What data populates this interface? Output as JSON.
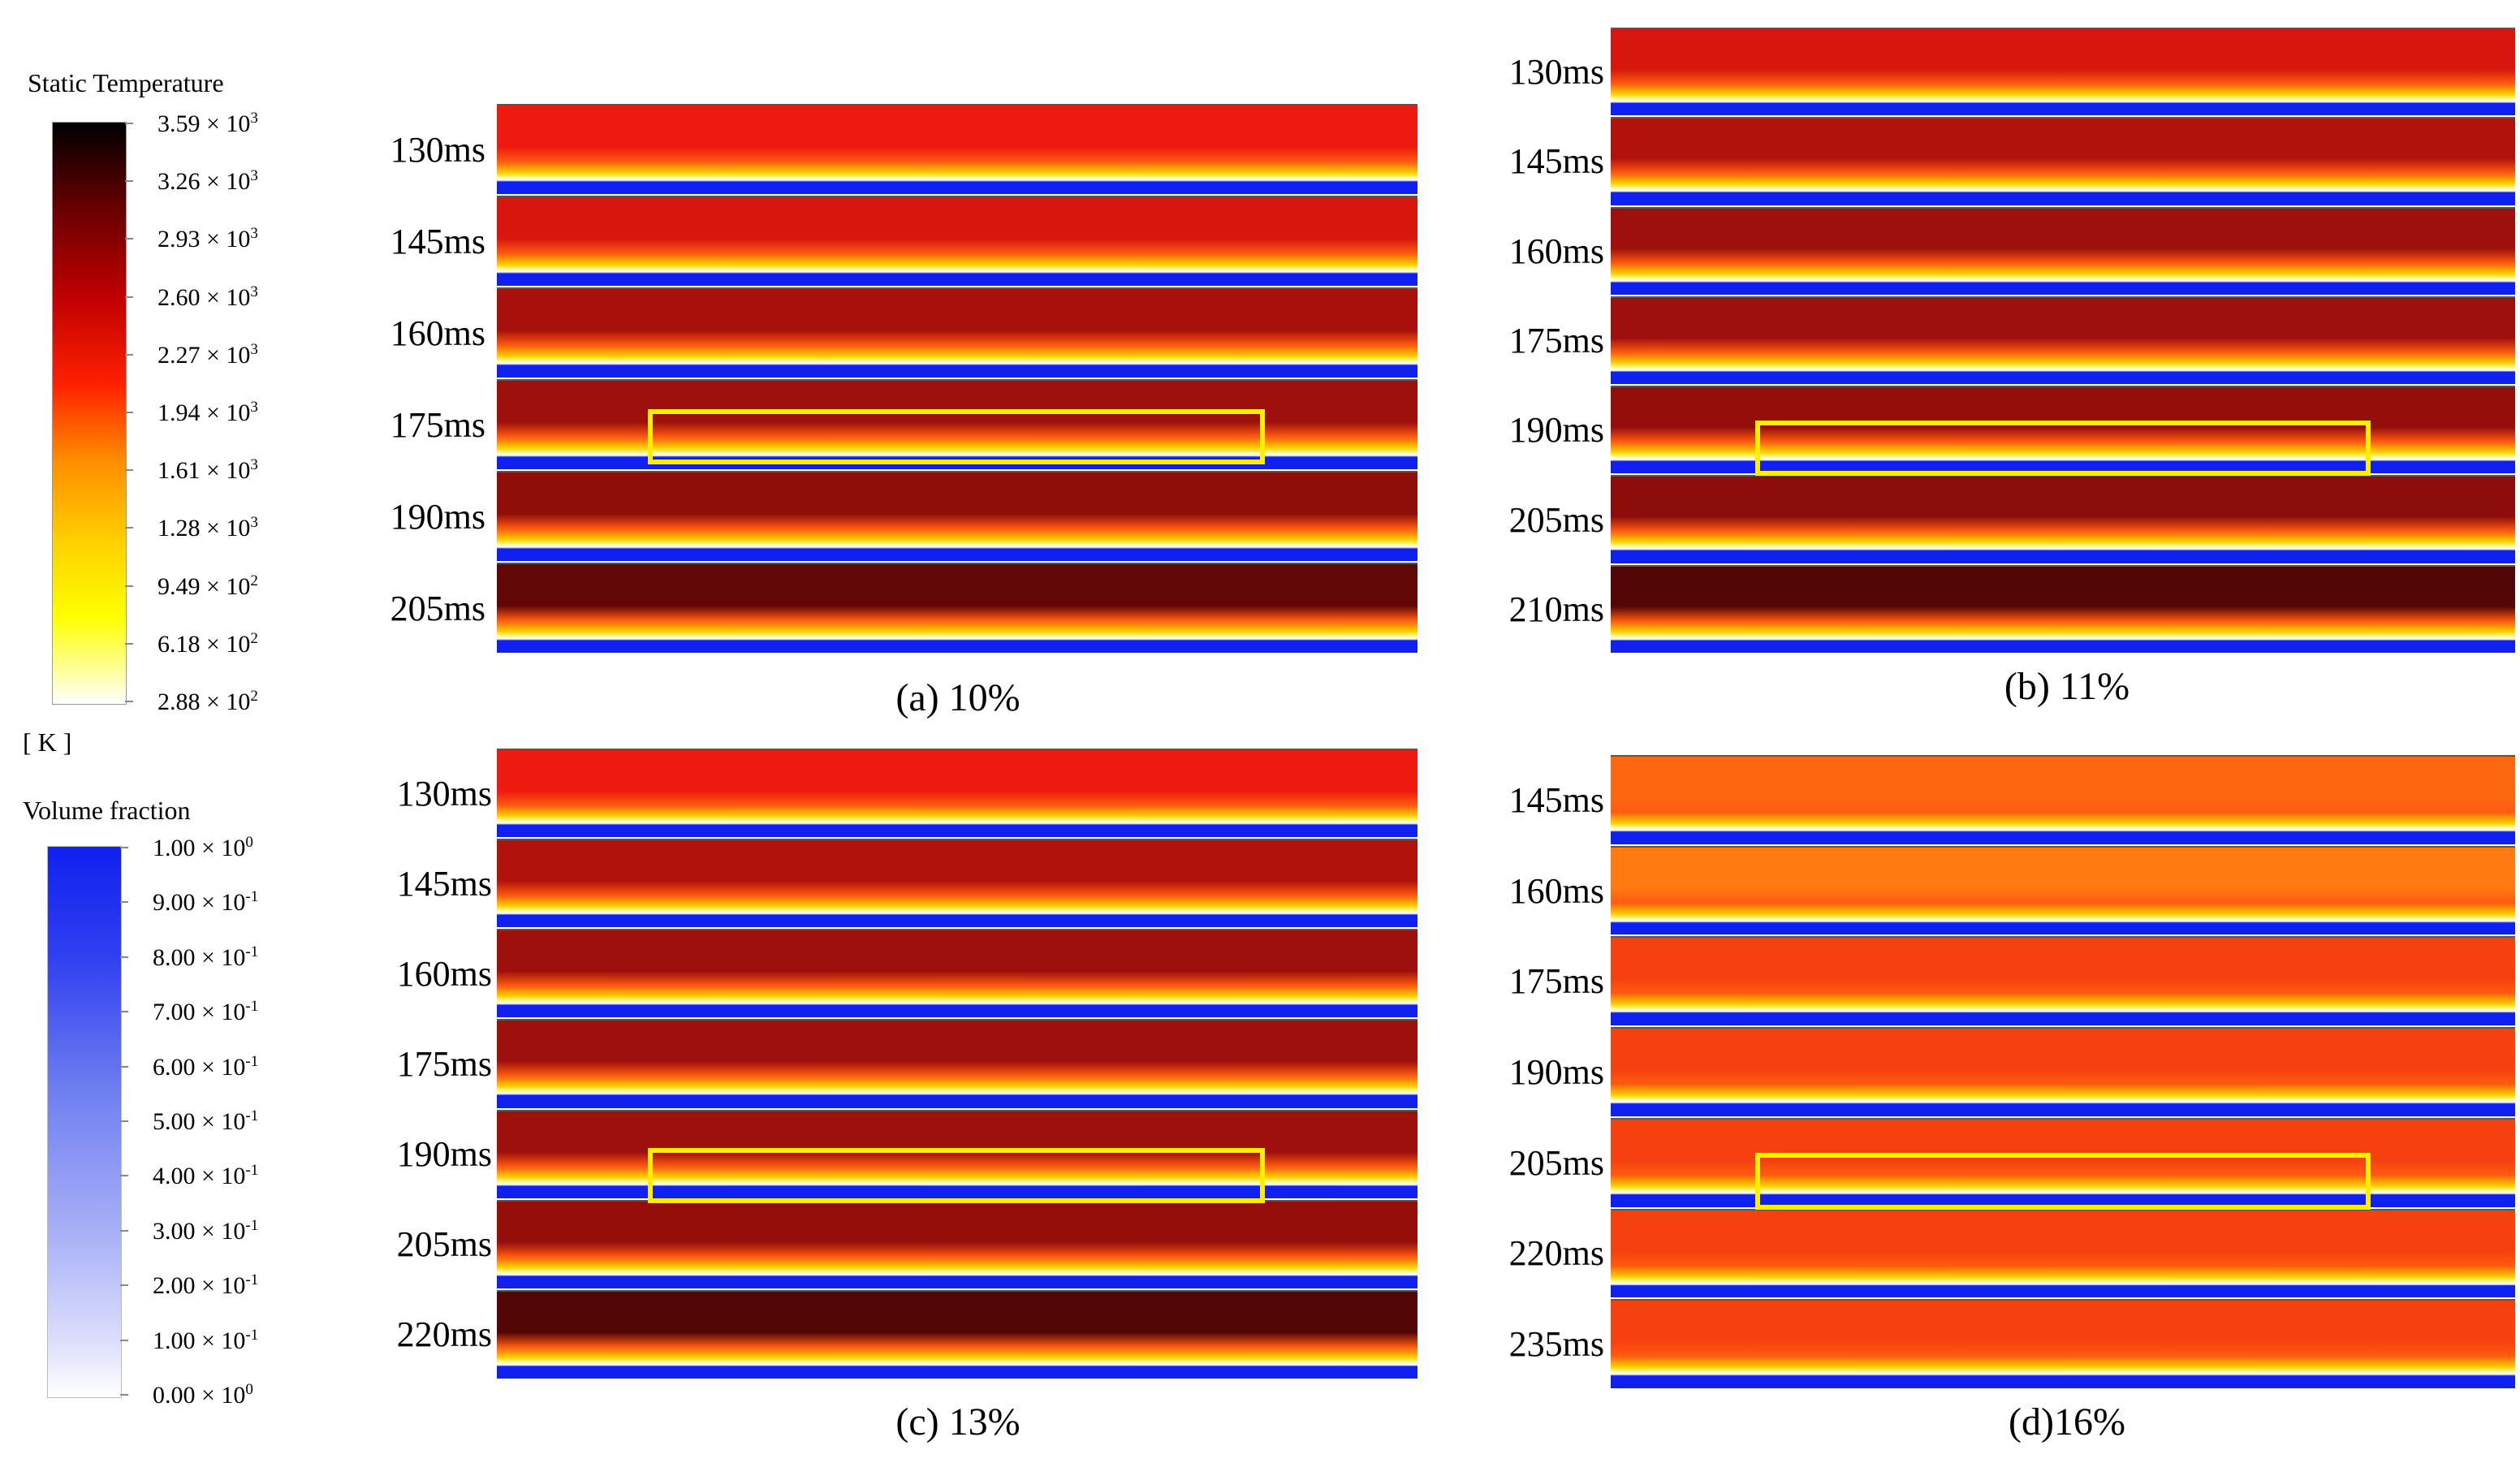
{
  "legends": {
    "temperature": {
      "title": "Static Temperature",
      "unit": "[ K ]",
      "ticks": [
        {
          "mant": "3.59",
          "exp": "3"
        },
        {
          "mant": "3.26",
          "exp": "3"
        },
        {
          "mant": "2.93",
          "exp": "3"
        },
        {
          "mant": "2.60",
          "exp": "3"
        },
        {
          "mant": "2.27",
          "exp": "3"
        },
        {
          "mant": "1.94",
          "exp": "3"
        },
        {
          "mant": "1.61",
          "exp": "3"
        },
        {
          "mant": "1.28",
          "exp": "3"
        },
        {
          "mant": "9.49",
          "exp": "2"
        },
        {
          "mant": "6.18",
          "exp": "2"
        },
        {
          "mant": "2.88",
          "exp": "2"
        }
      ]
    },
    "volume": {
      "title": "Volume fraction",
      "ticks": [
        {
          "mant": "1.00",
          "exp": "0"
        },
        {
          "mant": "9.00",
          "exp": "-1"
        },
        {
          "mant": "8.00",
          "exp": "-1"
        },
        {
          "mant": "7.00",
          "exp": "-1"
        },
        {
          "mant": "6.00",
          "exp": "-1"
        },
        {
          "mant": "5.00",
          "exp": "-1"
        },
        {
          "mant": "4.00",
          "exp": "-1"
        },
        {
          "mant": "3.00",
          "exp": "-1"
        },
        {
          "mant": "2.00",
          "exp": "-1"
        },
        {
          "mant": "1.00",
          "exp": "-1"
        },
        {
          "mant": "0.00",
          "exp": "0"
        }
      ]
    }
  },
  "panels": [
    {
      "id": "a",
      "caption": "(a) 10%",
      "highlight_strip": 3,
      "strips": [
        {
          "label": "130ms",
          "tone": 0.55
        },
        {
          "label": "145ms",
          "tone": 0.6
        },
        {
          "label": "160ms",
          "tone": 0.7
        },
        {
          "label": "175ms",
          "tone": 0.72
        },
        {
          "label": "190ms",
          "tone": 0.75
        },
        {
          "label": "205ms",
          "tone": 0.85
        }
      ]
    },
    {
      "id": "b",
      "caption": "(b) 11%",
      "highlight_strip": 4,
      "strips": [
        {
          "label": "130ms",
          "tone": 0.6
        },
        {
          "label": "145ms",
          "tone": 0.68
        },
        {
          "label": "160ms",
          "tone": 0.72
        },
        {
          "label": "175ms",
          "tone": 0.72
        },
        {
          "label": "190ms",
          "tone": 0.74
        },
        {
          "label": "205ms",
          "tone": 0.76
        },
        {
          "label": "210ms",
          "tone": 0.88
        }
      ]
    },
    {
      "id": "c",
      "caption": "(c) 13%",
      "highlight_strip": 4,
      "strips": [
        {
          "label": "130ms",
          "tone": 0.55
        },
        {
          "label": "145ms",
          "tone": 0.68
        },
        {
          "label": "160ms",
          "tone": 0.72
        },
        {
          "label": "175ms",
          "tone": 0.72
        },
        {
          "label": "190ms",
          "tone": 0.72
        },
        {
          "label": "205ms",
          "tone": 0.74
        },
        {
          "label": "220ms",
          "tone": 0.88
        }
      ]
    },
    {
      "id": "d",
      "caption": "(d)16%",
      "highlight_strip": 4,
      "strips": [
        {
          "label": "145ms",
          "tone": 0.35
        },
        {
          "label": "160ms",
          "tone": 0.3
        },
        {
          "label": "175ms",
          "tone": 0.45
        },
        {
          "label": "190ms",
          "tone": 0.45
        },
        {
          "label": "205ms",
          "tone": 0.45
        },
        {
          "label": "220ms",
          "tone": 0.45
        },
        {
          "label": "235ms",
          "tone": 0.45
        }
      ]
    }
  ]
}
